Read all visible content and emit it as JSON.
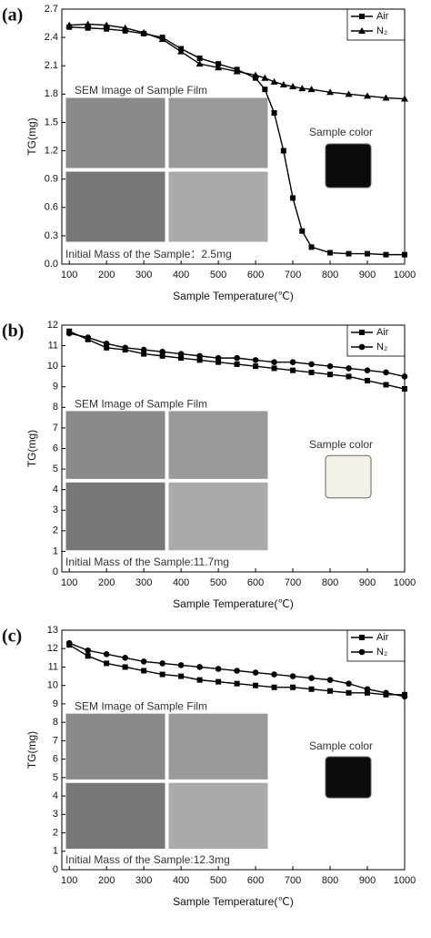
{
  "chart_data": [
    {
      "type": "line",
      "panel_label": "(a)",
      "x_label": "Sample Temperature(℃)",
      "y_label": "TG(mg)",
      "inset_title": "SEM Image of Sample Film",
      "color_label": "Sample color",
      "sample_color": "#0a0a0a",
      "mass_note": "Initial Mass of the Sample：2.5mg",
      "x": [
        100,
        150,
        200,
        250,
        300,
        350,
        400,
        450,
        500,
        550,
        600,
        625,
        650,
        675,
        700,
        725,
        750,
        800,
        850,
        900,
        950,
        1000
      ],
      "series": [
        {
          "name": "Air",
          "color": "#000000",
          "marker": "square",
          "values": [
            2.51,
            2.5,
            2.49,
            2.47,
            2.44,
            2.4,
            2.28,
            2.18,
            2.12,
            2.06,
            1.97,
            1.85,
            1.6,
            1.2,
            0.7,
            0.35,
            0.18,
            0.12,
            0.11,
            0.11,
            0.1,
            0.1
          ]
        },
        {
          "name": "N₂",
          "color": "#000000",
          "marker": "triangle",
          "values": [
            2.53,
            2.54,
            2.53,
            2.5,
            2.45,
            2.38,
            2.25,
            2.12,
            2.08,
            2.04,
            2.0,
            1.97,
            1.93,
            1.9,
            1.88,
            1.86,
            1.85,
            1.82,
            1.8,
            1.78,
            1.76,
            1.75
          ]
        }
      ],
      "xlim": [
        80,
        1000
      ],
      "xticks": [
        100,
        200,
        300,
        400,
        500,
        600,
        700,
        800,
        900,
        1000
      ],
      "ylim": [
        0,
        2.7
      ],
      "yticks": [
        {
          "value": 0,
          "label": "0.0"
        },
        0.3,
        0.6,
        0.9,
        1.2,
        1.5,
        1.8,
        2.1,
        2.4,
        2.7
      ]
    },
    {
      "type": "line",
      "panel_label": "(b)",
      "x_label": "Sample Temperature(℃)",
      "y_label": "TG(mg)",
      "inset_title": "SEM Image of Sample Film",
      "color_label": "Sample color",
      "sample_color": "#f4f1e6",
      "mass_note": "Initial Mass of the Sample:11.7mg",
      "x": [
        100,
        150,
        200,
        250,
        300,
        350,
        400,
        450,
        500,
        550,
        600,
        650,
        700,
        750,
        800,
        850,
        900,
        950,
        1000
      ],
      "series": [
        {
          "name": "Air",
          "color": "#000000",
          "marker": "square",
          "values": [
            11.7,
            11.3,
            10.9,
            10.8,
            10.6,
            10.5,
            10.4,
            10.3,
            10.2,
            10.1,
            10.0,
            9.9,
            9.8,
            9.7,
            9.6,
            9.5,
            9.3,
            9.1,
            8.9
          ]
        },
        {
          "name": "N₂",
          "color": "#000000",
          "marker": "circle",
          "values": [
            11.6,
            11.4,
            11.1,
            10.9,
            10.8,
            10.7,
            10.6,
            10.5,
            10.4,
            10.4,
            10.3,
            10.2,
            10.2,
            10.1,
            10.0,
            9.9,
            9.8,
            9.7,
            9.5
          ]
        }
      ],
      "xlim": [
        80,
        1000
      ],
      "xticks": [
        100,
        200,
        300,
        400,
        500,
        600,
        700,
        800,
        900,
        1000
      ],
      "ylim": [
        0,
        12
      ],
      "yticks": [
        0,
        1,
        2,
        3,
        4,
        5,
        6,
        7,
        8,
        9,
        10,
        11,
        12
      ]
    },
    {
      "type": "line",
      "panel_label": "(c)",
      "x_label": "Sample Temperature(℃)",
      "y_label": "TG(mg)",
      "inset_title": "SEM Image of Sample Film",
      "color_label": "Sample color",
      "sample_color": "#0c0c0c",
      "mass_note": "Initial Mass of the Sample:12.3mg",
      "x": [
        100,
        150,
        200,
        250,
        300,
        350,
        400,
        450,
        500,
        550,
        600,
        650,
        700,
        750,
        800,
        850,
        900,
        950,
        1000
      ],
      "series": [
        {
          "name": "Air",
          "color": "#000000",
          "marker": "square",
          "values": [
            12.2,
            11.6,
            11.2,
            11.0,
            10.8,
            10.6,
            10.5,
            10.3,
            10.2,
            10.1,
            10.0,
            9.9,
            9.9,
            9.8,
            9.7,
            9.6,
            9.6,
            9.5,
            9.5
          ]
        },
        {
          "name": "N₂",
          "color": "#000000",
          "marker": "circle",
          "values": [
            12.3,
            11.9,
            11.7,
            11.5,
            11.3,
            11.2,
            11.1,
            11.0,
            10.9,
            10.8,
            10.7,
            10.6,
            10.5,
            10.4,
            10.3,
            10.1,
            9.8,
            9.6,
            9.4
          ]
        }
      ],
      "xlim": [
        80,
        1000
      ],
      "xticks": [
        100,
        200,
        300,
        400,
        500,
        600,
        700,
        800,
        900,
        1000
      ],
      "ylim": [
        0,
        13
      ],
      "yticks": [
        0,
        1,
        2,
        3,
        4,
        5,
        6,
        7,
        8,
        9,
        10,
        11,
        12,
        13
      ]
    }
  ]
}
